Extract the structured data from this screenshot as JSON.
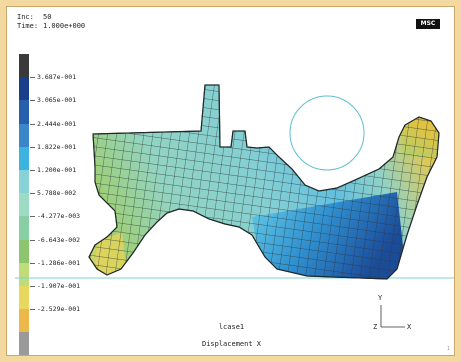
{
  "header": {
    "inc_label": "Inc:",
    "inc_value": "50",
    "time_label": "Time:",
    "time_value": "1.000e+000"
  },
  "logo": {
    "text": "MSC"
  },
  "scale": {
    "colors": [
      "#3a3a3a",
      "#1a3f8a",
      "#2660ad",
      "#3a86c8",
      "#3db4e0",
      "#86d2d6",
      "#9edbc4",
      "#88cfa6",
      "#8dc46e",
      "#bfdc7a",
      "#e8d860",
      "#ecb84a",
      "#9a9a9a"
    ],
    "labels": [
      "3.687e-001",
      "3.065e-001",
      "2.444e-001",
      "1.822e-001",
      "1.200e-001",
      "5.788e-002",
      "-4.277e-003",
      "-6.643e-002",
      "-1.286e-001",
      "-1.907e-001",
      "-2.529e-001"
    ]
  },
  "axes": {
    "y_label": "Y",
    "z_label": "Z",
    "x_label": "X"
  },
  "footer": {
    "case_label": "lcase1",
    "result_label": "Displacement X",
    "page_number": "1"
  }
}
